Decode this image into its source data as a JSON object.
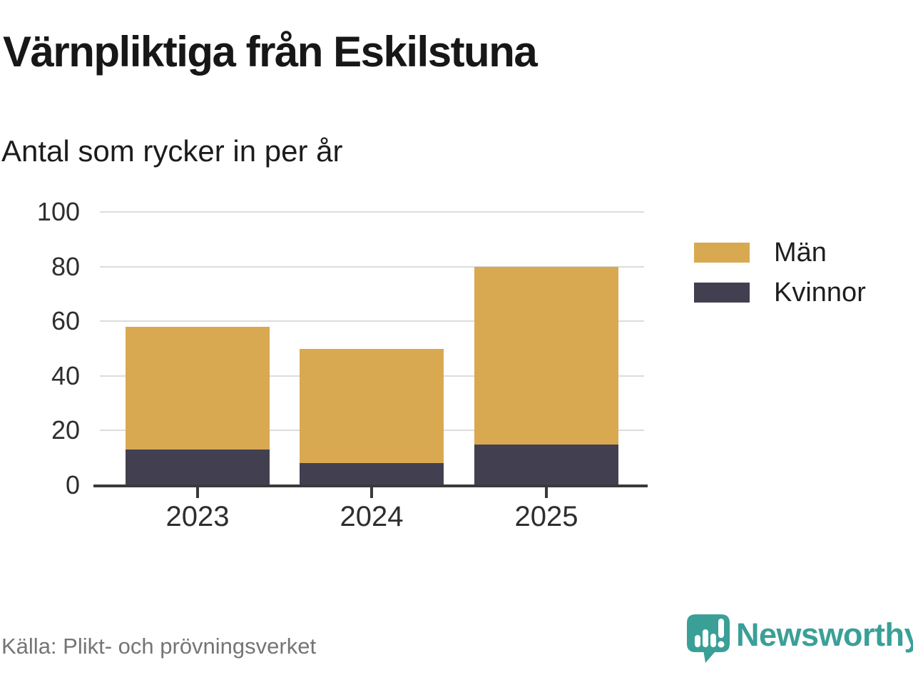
{
  "header": {
    "title": "Värnpliktiga från Eskilstuna",
    "subtitle": "Antal som rycker in per år"
  },
  "chart_data": {
    "type": "bar",
    "stacked": true,
    "title": "Värnpliktiga från Eskilstuna",
    "subtitle": "Antal som rycker in per år",
    "categories": [
      "2023",
      "2024",
      "2025"
    ],
    "series": [
      {
        "name": "Män",
        "color": "#D9A951",
        "values": [
          45,
          42,
          65
        ]
      },
      {
        "name": "Kvinnor",
        "color": "#424050",
        "values": [
          13,
          8,
          15
        ]
      }
    ],
    "stack_order_bottom_to_top": [
      "Kvinnor",
      "Män"
    ],
    "totals": [
      58,
      50,
      80
    ],
    "xlabel": "",
    "ylabel": "",
    "ylim": [
      0,
      100
    ],
    "yticks": [
      0,
      20,
      40,
      60,
      80,
      100
    ],
    "grid": true,
    "legend_position": "right"
  },
  "footer": {
    "source": "Källa: Plikt- och prövningsverket",
    "brand": "Newsworthy"
  },
  "colors": {
    "men": "#D9A951",
    "women": "#424050",
    "grid": "#dcdcdc",
    "axis": "#3a3a3a",
    "brand_teal": "#3AA097",
    "muted_text": "#757575"
  },
  "icons": {
    "logo": "newsworthy-logo"
  }
}
